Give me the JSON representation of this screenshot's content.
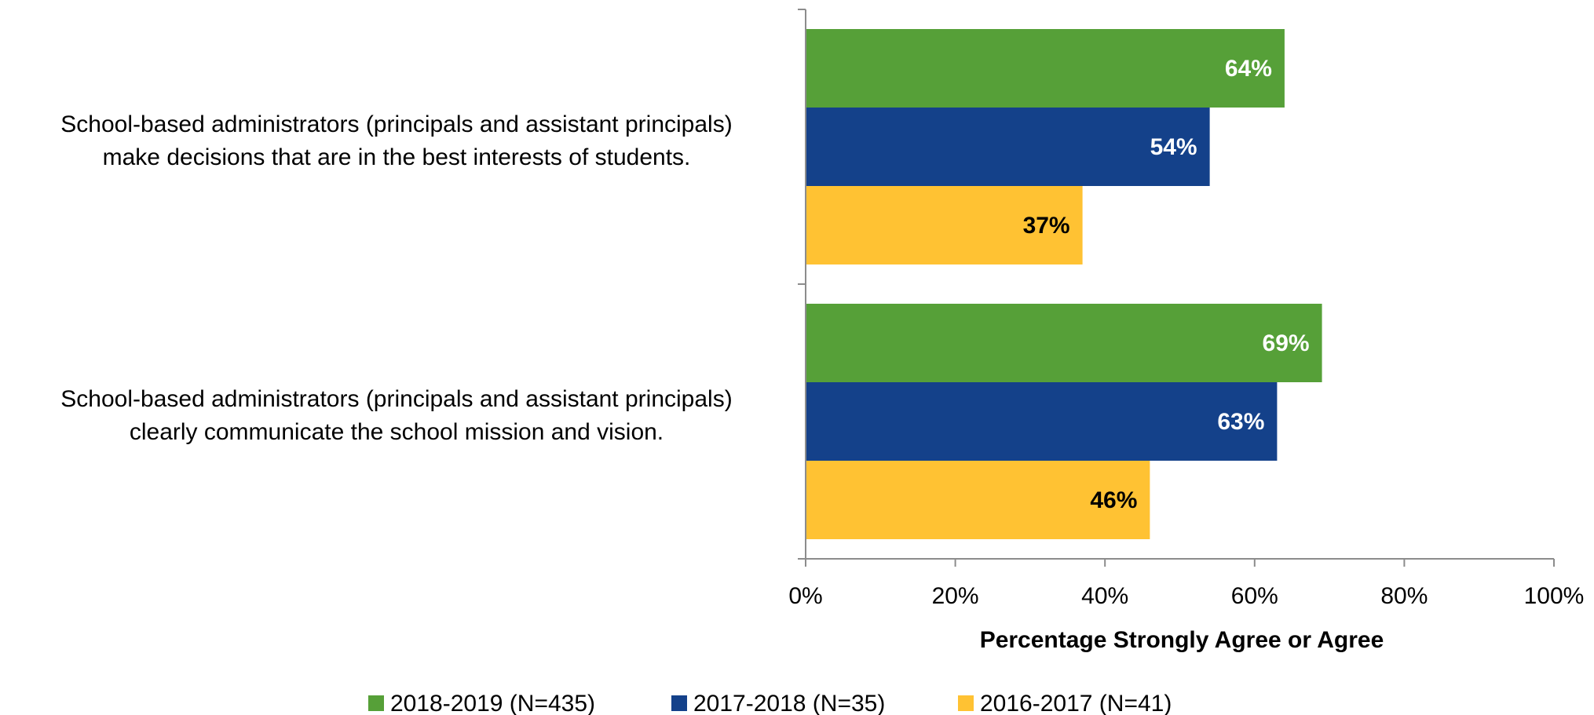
{
  "chart_data": {
    "type": "bar",
    "orientation": "horizontal",
    "categories": [
      [
        "School-based administrators (principals and assistant principals)",
        "make decisions that are in the best interests of students."
      ],
      [
        "School-based administrators (principals and assistant principals)",
        "clearly communicate the school mission and vision."
      ]
    ],
    "series": [
      {
        "name": "2018-2019 (N=435)",
        "color": "#56a038",
        "label_color": "#ffffff",
        "values": [
          64,
          69
        ]
      },
      {
        "name": "2017-2018 (N=35)",
        "color": "#14418a",
        "label_color": "#ffffff",
        "values": [
          54,
          63
        ]
      },
      {
        "name": "2016-2017 (N=41)",
        "color": "#ffc233",
        "label_color": "#000000",
        "values": [
          37,
          46
        ]
      }
    ],
    "data_label_suffix": "%",
    "xlim": [
      0,
      100
    ],
    "xticks": [
      0,
      20,
      40,
      60,
      80,
      100
    ],
    "xtick_labels": [
      "0%",
      "20%",
      "40%",
      "60%",
      "80%",
      "100%"
    ],
    "xlabel": "Percentage Strongly Agree or Agree",
    "ylabel": "",
    "title": "",
    "grid": false,
    "legend_position": "bottom"
  }
}
